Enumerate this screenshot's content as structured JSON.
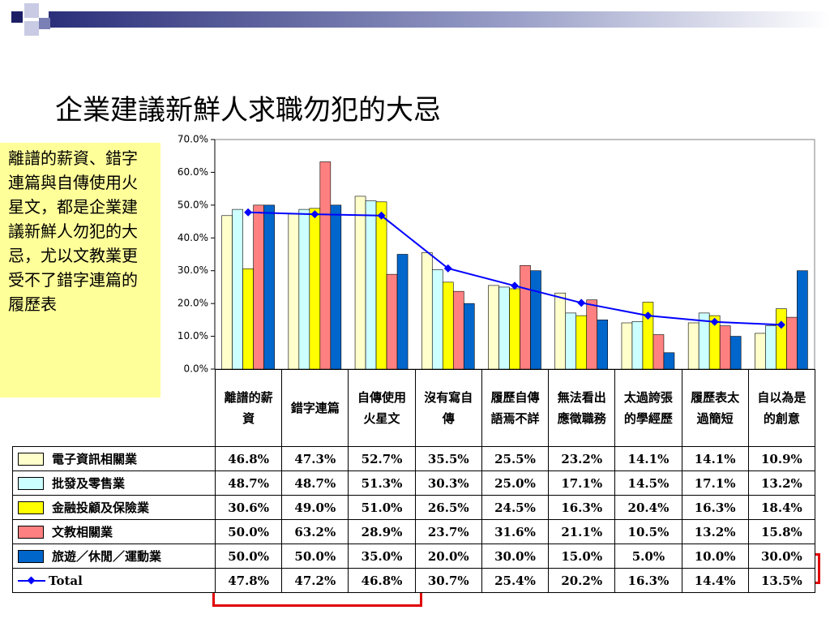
{
  "chart_data": {
    "type": "bar",
    "title": "企業建議新鮮人求職勿犯的大忌",
    "annotation": "離譜的薪資、錯字連篇與自傳使用火星文，都是企業建議新鮮人勿犯的大忌，尤以文教業更受不了錯字連篇的履歷表",
    "categories": [
      "離譜的薪資",
      "錯字連篇",
      "自傳使用火星文",
      "沒有寫自傳",
      "履歷自傳語焉不詳",
      "無法看出應徵職務",
      "太過誇張的學經歷",
      "履歷表太過簡短",
      "自以為是的創意"
    ],
    "series": [
      {
        "name": "電子資訊相關業",
        "color": "#ffffcc",
        "values": [
          46.8,
          47.3,
          52.7,
          35.5,
          25.5,
          23.2,
          14.1,
          14.1,
          10.9
        ],
        "value_labels": [
          "46.8%",
          "47.3%",
          "52.7%",
          "35.5%",
          "25.5%",
          "23.2%",
          "14.1%",
          "14.1%",
          "10.9%"
        ]
      },
      {
        "name": "批發及零售業",
        "color": "#ccffff",
        "values": [
          48.7,
          48.7,
          51.3,
          30.3,
          25.0,
          17.1,
          14.5,
          17.1,
          13.2
        ],
        "value_labels": [
          "48.7%",
          "48.7%",
          "51.3%",
          "30.3%",
          "25.0%",
          "17.1%",
          "14.5%",
          "17.1%",
          "13.2%"
        ]
      },
      {
        "name": "金融投顧及保險業",
        "color": "#ffff00",
        "values": [
          30.6,
          49.0,
          51.0,
          26.5,
          24.5,
          16.3,
          20.4,
          16.3,
          18.4
        ],
        "value_labels": [
          "30.6%",
          "49.0%",
          "51.0%",
          "26.5%",
          "24.5%",
          "16.3%",
          "20.4%",
          "16.3%",
          "18.4%"
        ]
      },
      {
        "name": "文教相關業",
        "color": "#ff8080",
        "values": [
          50.0,
          63.2,
          28.9,
          23.7,
          31.6,
          21.1,
          10.5,
          13.2,
          15.8
        ],
        "value_labels": [
          "50.0%",
          "63.2%",
          "28.9%",
          "23.7%",
          "31.6%",
          "21.1%",
          "10.5%",
          "13.2%",
          "15.8%"
        ]
      },
      {
        "name": "旅遊／休閒／運動業",
        "color": "#0066cc",
        "values": [
          50.0,
          50.0,
          35.0,
          20.0,
          30.0,
          15.0,
          5.0,
          10.0,
          30.0
        ],
        "value_labels": [
          "50.0%",
          "50.0%",
          "35.0%",
          "20.0%",
          "30.0%",
          "15.0%",
          "5.0%",
          "10.0%",
          "30.0%"
        ]
      },
      {
        "name": "Total",
        "type": "line",
        "color": "#0000ff",
        "values": [
          47.8,
          47.2,
          46.8,
          30.7,
          25.4,
          20.2,
          16.3,
          14.4,
          13.5
        ],
        "value_labels": [
          "47.8%",
          "47.2%",
          "46.8%",
          "30.7%",
          "25.4%",
          "20.2%",
          "16.3%",
          "14.4%",
          "13.5%"
        ]
      }
    ],
    "ylim": [
      0,
      70
    ],
    "yticks": [
      {
        "value": 0,
        "label": "0.0%"
      },
      {
        "value": 10,
        "label": "10.0%"
      },
      {
        "value": 20,
        "label": "20.0%"
      },
      {
        "value": 30,
        "label": "30.0%"
      },
      {
        "value": 40,
        "label": "40.0%"
      },
      {
        "value": 50,
        "label": "50.0%"
      },
      {
        "value": 60,
        "label": "60.0%"
      },
      {
        "value": 70,
        "label": "70.0%"
      }
    ]
  }
}
